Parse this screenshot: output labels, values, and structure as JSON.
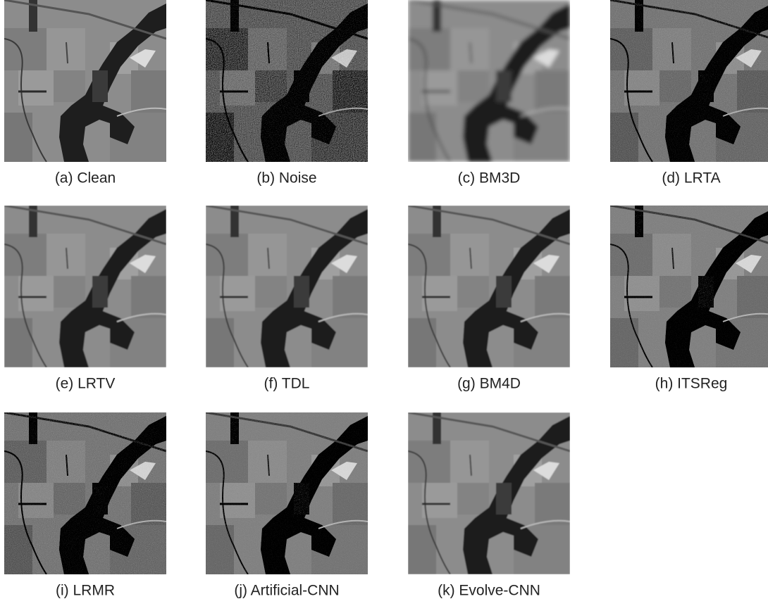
{
  "figure": {
    "panels": [
      {
        "caption": "(a) Clean"
      },
      {
        "caption": "(b) Noise"
      },
      {
        "caption": "(c) BM3D"
      },
      {
        "caption": "(d) LRTA"
      },
      {
        "caption": "(e) LRTV"
      },
      {
        "caption": "(f) TDL"
      },
      {
        "caption": "(g) BM4D"
      },
      {
        "caption": "(h) ITSReg"
      },
      {
        "caption": "(i) LRMR"
      },
      {
        "caption": "(j) Artificial-CNN"
      },
      {
        "caption": "(k) Evolve-CNN"
      }
    ]
  }
}
